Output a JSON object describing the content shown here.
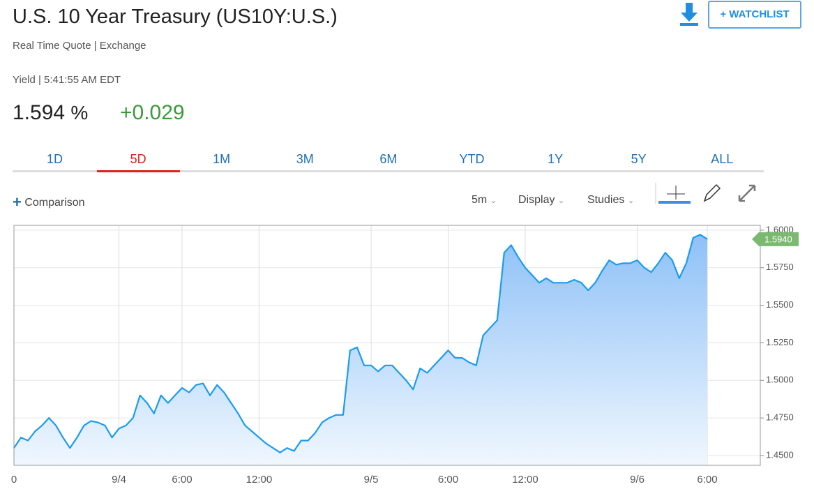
{
  "header": {
    "title": "U.S. 10 Year Treasury (US10Y:U.S.)",
    "subtitle": "Real Time Quote | Exchange",
    "watchlist": "+ WATCHLIST"
  },
  "quote": {
    "label": "Yield | 5:41:55 AM EDT",
    "price": "1.594",
    "unit": "%",
    "change": "+0.029"
  },
  "tabs": {
    "items": [
      "1D",
      "5D",
      "1M",
      "3M",
      "6M",
      "YTD",
      "1Y",
      "5Y",
      "ALL"
    ],
    "active": 1
  },
  "toolbar": {
    "comparison": "Comparison",
    "interval": "5m",
    "display": "Display",
    "studies": "Studies"
  },
  "chart_data": {
    "type": "area",
    "color": "#1a9cf0",
    "grid": true,
    "categories": [
      "0",
      null,
      null,
      null,
      null,
      null,
      null,
      null,
      null,
      null,
      null,
      null,
      null,
      null,
      null,
      "9/4",
      null,
      null,
      null,
      null,
      null,
      null,
      null,
      null,
      "6:00",
      null,
      null,
      null,
      null,
      null,
      null,
      null,
      null,
      null,
      null,
      "12:00",
      null,
      null,
      null,
      null,
      null,
      null,
      null,
      null,
      null,
      null,
      null,
      null,
      null,
      null,
      null,
      "9/5",
      null,
      null,
      null,
      null,
      null,
      null,
      null,
      null,
      null,
      null,
      "6:00",
      null,
      null,
      null,
      null,
      null,
      null,
      null,
      null,
      null,
      null,
      "12:00",
      null,
      null,
      null,
      null,
      null,
      null,
      null,
      null,
      null,
      null,
      null,
      null,
      null,
      null,
      null,
      "9/6",
      null,
      null,
      null,
      null,
      null,
      null,
      null,
      null,
      null,
      "6:00"
    ],
    "values": [
      1.455,
      1.462,
      1.46,
      1.466,
      1.47,
      1.475,
      1.47,
      1.462,
      1.455,
      1.462,
      1.47,
      1.473,
      1.472,
      1.47,
      1.462,
      1.468,
      1.47,
      1.475,
      1.49,
      1.485,
      1.478,
      1.49,
      1.485,
      1.49,
      1.495,
      1.492,
      1.497,
      1.498,
      1.49,
      1.497,
      1.492,
      1.485,
      1.478,
      1.47,
      1.466,
      1.462,
      1.458,
      1.455,
      1.452,
      1.455,
      1.453,
      1.46,
      1.46,
      1.465,
      1.472,
      1.475,
      1.477,
      1.477,
      1.52,
      1.522,
      1.51,
      1.51,
      1.506,
      1.51,
      1.51,
      1.505,
      1.5,
      1.494,
      1.508,
      1.505,
      1.51,
      1.515,
      1.52,
      1.515,
      1.515,
      1.512,
      1.51,
      1.53,
      1.535,
      1.54,
      1.585,
      1.59,
      1.582,
      1.575,
      1.57,
      1.565,
      1.568,
      1.565,
      1.565,
      1.565,
      1.567,
      1.565,
      1.56,
      1.565,
      1.573,
      1.58,
      1.577,
      1.578,
      1.578,
      1.58,
      1.575,
      1.572,
      1.578,
      1.585,
      1.58,
      1.568,
      1.578,
      1.595,
      1.597,
      1.594
    ],
    "last_label": "1.5940",
    "ylim": [
      1.4435,
      1.6032
    ],
    "yticks": [
      {
        "value": 1.45,
        "label": "1.4500"
      },
      {
        "value": 1.475,
        "label": "1.4750"
      },
      {
        "value": 1.5,
        "label": "1.5000"
      },
      {
        "value": 1.525,
        "label": "1.5250"
      },
      {
        "value": 1.55,
        "label": "1.5500"
      },
      {
        "value": 1.575,
        "label": "1.5750"
      },
      {
        "value": 1.6,
        "label": "1.6000"
      }
    ]
  }
}
